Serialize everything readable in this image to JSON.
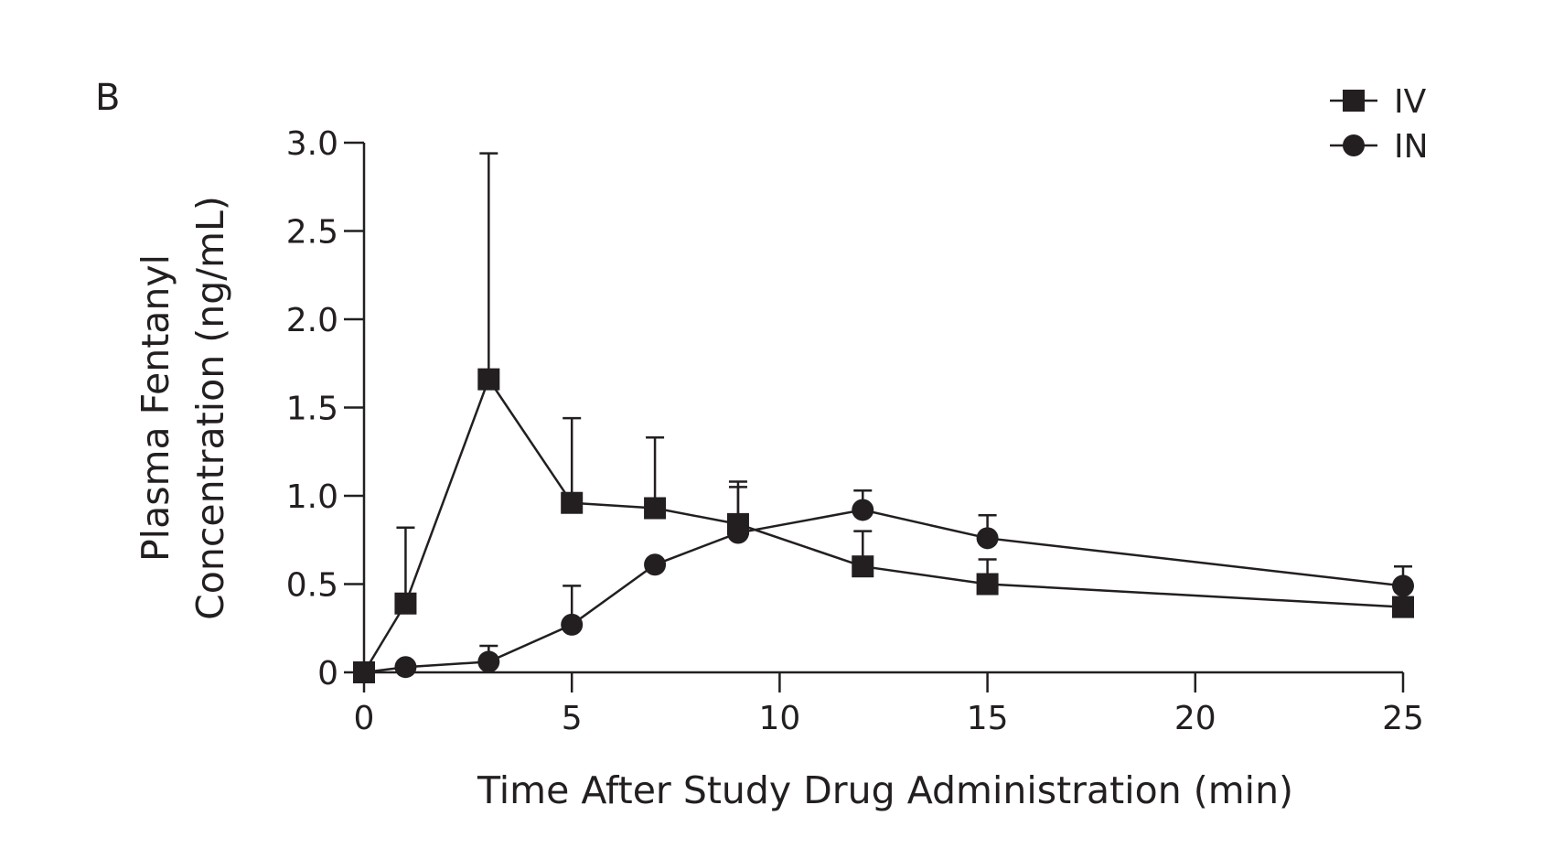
{
  "panel_label": "B",
  "colors": {
    "ink": "#231f20"
  },
  "chart_data": {
    "type": "line",
    "xlabel": "Time After Study Drug Administration (min)",
    "ylabel_lines": [
      "Plasma Fentanyl",
      "Concentration (ng/mL)"
    ],
    "xlim": [
      0,
      25
    ],
    "ylim": [
      0,
      3.0
    ],
    "x_ticks": [
      0,
      5,
      10,
      15,
      20,
      25
    ],
    "x_tick_labels": [
      "0",
      "5",
      "10",
      "15",
      "20",
      "25"
    ],
    "y_ticks": [
      0,
      0.5,
      1.0,
      1.5,
      2.0,
      2.5,
      3.0
    ],
    "y_tick_labels": [
      "0",
      "0.5",
      "1.0",
      "1.5",
      "2.0",
      "2.5",
      "3.0"
    ],
    "grid": false,
    "legend_position": "top-right",
    "series": [
      {
        "name": "IV",
        "marker": "square",
        "x": [
          0,
          1,
          3,
          5,
          7,
          9,
          12,
          15,
          25
        ],
        "y": [
          0,
          0.39,
          1.66,
          0.96,
          0.93,
          0.84,
          0.6,
          0.5,
          0.37
        ],
        "error_upper": [
          null,
          0.82,
          2.94,
          1.44,
          1.33,
          1.08,
          0.8,
          0.64,
          0.47
        ]
      },
      {
        "name": "IN",
        "marker": "circle",
        "x": [
          0,
          1,
          3,
          5,
          7,
          9,
          12,
          15,
          25
        ],
        "y": [
          0,
          0.03,
          0.06,
          0.27,
          0.61,
          0.79,
          0.92,
          0.76,
          0.49
        ],
        "error_upper": [
          null,
          null,
          0.15,
          0.49,
          null,
          1.05,
          1.03,
          0.89,
          0.6
        ]
      }
    ]
  }
}
